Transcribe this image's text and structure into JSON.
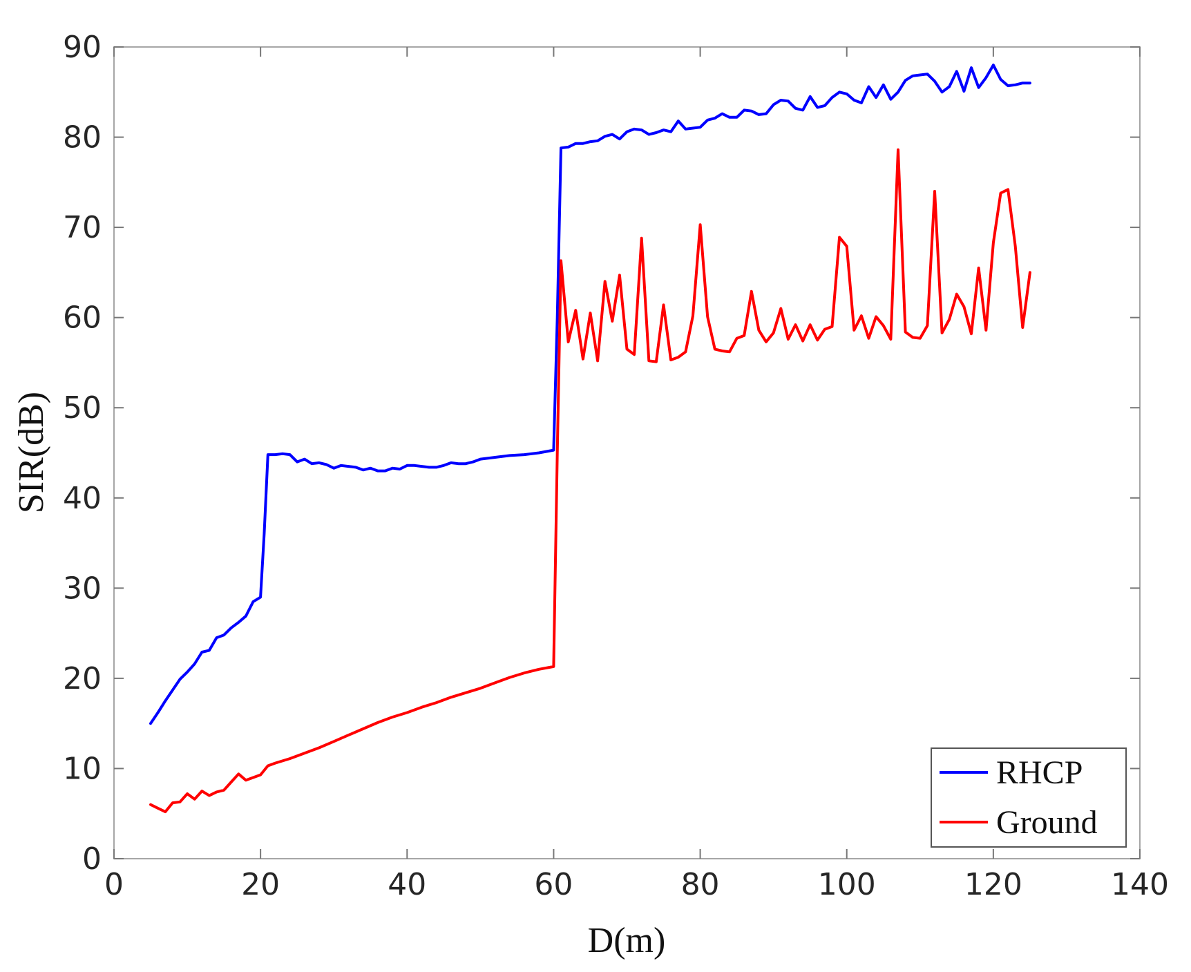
{
  "chart_data": {
    "type": "line",
    "title": "",
    "xlabel": "D(m)",
    "ylabel": "SIR(dB)",
    "xlim": [
      0,
      140
    ],
    "ylim": [
      0,
      90
    ],
    "xticks": [
      0,
      20,
      40,
      60,
      80,
      100,
      120,
      140
    ],
    "yticks": [
      0,
      10,
      20,
      30,
      40,
      50,
      60,
      70,
      80,
      90
    ],
    "grid": false,
    "legend_position": "bottom-right",
    "series": [
      {
        "name": "RHCP",
        "color": "#0000ff",
        "x": [
          5,
          6,
          7,
          8,
          9,
          10,
          11,
          12,
          13,
          14,
          15,
          16,
          17,
          18,
          19,
          20,
          20.5,
          21,
          22,
          23,
          24,
          25,
          26,
          27,
          28,
          29,
          30,
          31,
          32,
          33,
          34,
          35,
          36,
          37,
          38,
          39,
          40,
          41,
          42,
          43,
          44,
          45,
          46,
          47,
          48,
          49,
          50,
          52,
          54,
          56,
          58,
          60,
          60.5,
          61,
          62,
          63,
          64,
          65,
          66,
          67,
          68,
          69,
          70,
          71,
          72,
          73,
          74,
          75,
          76,
          77,
          78,
          79,
          80,
          81,
          82,
          83,
          84,
          85,
          86,
          87,
          88,
          89,
          90,
          91,
          92,
          93,
          94,
          95,
          96,
          97,
          98,
          99,
          100,
          101,
          102,
          103,
          104,
          105,
          106,
          107,
          108,
          109,
          110,
          111,
          112,
          113,
          114,
          115,
          116,
          117,
          118,
          119,
          120,
          121,
          122,
          123,
          124,
          125
        ],
        "values": [
          15.0,
          16.2,
          17.5,
          18.7,
          19.9,
          20.7,
          21.6,
          22.9,
          23.1,
          24.5,
          24.8,
          25.6,
          26.2,
          26.9,
          28.5,
          29.0,
          36.0,
          44.8,
          44.8,
          44.9,
          44.8,
          44.0,
          44.3,
          43.8,
          43.9,
          43.7,
          43.3,
          43.6,
          43.5,
          43.4,
          43.1,
          43.3,
          43.0,
          43.0,
          43.3,
          43.2,
          43.6,
          43.6,
          43.5,
          43.4,
          43.4,
          43.6,
          43.9,
          43.8,
          43.8,
          44.0,
          44.3,
          44.5,
          44.7,
          44.8,
          45.0,
          45.3,
          60.0,
          78.8,
          78.9,
          79.3,
          79.3,
          79.5,
          79.6,
          80.1,
          80.3,
          79.8,
          80.6,
          80.9,
          80.8,
          80.3,
          80.5,
          80.8,
          80.6,
          81.8,
          80.9,
          81.0,
          81.1,
          81.9,
          82.1,
          82.6,
          82.2,
          82.2,
          83.0,
          82.9,
          82.5,
          82.6,
          83.6,
          84.1,
          84.0,
          83.2,
          83.0,
          84.5,
          83.3,
          83.5,
          84.4,
          85.0,
          84.8,
          84.1,
          83.8,
          85.6,
          84.4,
          85.8,
          84.2,
          85.0,
          86.3,
          86.8,
          86.9,
          87.0,
          86.2,
          85.0,
          85.6,
          87.3,
          85.1,
          87.7,
          85.5,
          86.6,
          88.0,
          86.4,
          85.7,
          85.8,
          86.0,
          86.0
        ]
      },
      {
        "name": "Ground",
        "color": "#ff0000",
        "x": [
          5,
          6,
          7,
          8,
          9,
          10,
          11,
          12,
          13,
          14,
          15,
          16,
          17,
          18,
          19,
          20,
          21,
          22,
          24,
          26,
          28,
          30,
          32,
          34,
          36,
          38,
          40,
          42,
          44,
          46,
          48,
          50,
          52,
          54,
          56,
          58,
          60,
          60.5,
          61,
          62,
          63,
          64,
          65,
          66,
          67,
          68,
          69,
          70,
          71,
          72,
          73,
          74,
          75,
          76,
          77,
          78,
          79,
          80,
          81,
          82,
          83,
          84,
          85,
          86,
          87,
          88,
          89,
          90,
          91,
          92,
          93,
          94,
          95,
          96,
          97,
          98,
          99,
          100,
          101,
          102,
          103,
          104,
          105,
          106,
          107,
          108,
          109,
          110,
          111,
          112,
          113,
          114,
          115,
          116,
          117,
          118,
          119,
          120,
          121,
          122,
          123,
          124,
          125
        ],
        "values": [
          6.0,
          5.6,
          5.2,
          6.2,
          6.3,
          7.2,
          6.6,
          7.5,
          7.0,
          7.4,
          7.6,
          8.5,
          9.4,
          8.7,
          9.0,
          9.3,
          10.3,
          10.6,
          11.1,
          11.7,
          12.3,
          13.0,
          13.7,
          14.4,
          15.1,
          15.7,
          16.2,
          16.8,
          17.3,
          17.9,
          18.4,
          18.9,
          19.5,
          20.1,
          20.6,
          21.0,
          21.3,
          45.0,
          66.3,
          57.3,
          60.8,
          55.4,
          60.5,
          55.2,
          64.0,
          59.6,
          64.7,
          56.5,
          55.9,
          68.8,
          55.2,
          55.1,
          61.4,
          55.3,
          55.6,
          56.2,
          60.2,
          70.3,
          60.1,
          56.5,
          56.3,
          56.2,
          57.7,
          58.0,
          62.9,
          58.6,
          57.3,
          58.3,
          61.0,
          57.6,
          59.2,
          57.4,
          59.2,
          57.5,
          58.7,
          59.0,
          68.9,
          67.9,
          58.6,
          60.2,
          57.7,
          60.1,
          59.1,
          57.6,
          78.6,
          58.4,
          57.8,
          57.7,
          59.1,
          74.0,
          58.3,
          59.8,
          62.6,
          61.2,
          58.2,
          65.5,
          58.6,
          68.3,
          73.8,
          74.2,
          67.9,
          58.9,
          65.0
        ]
      }
    ]
  }
}
